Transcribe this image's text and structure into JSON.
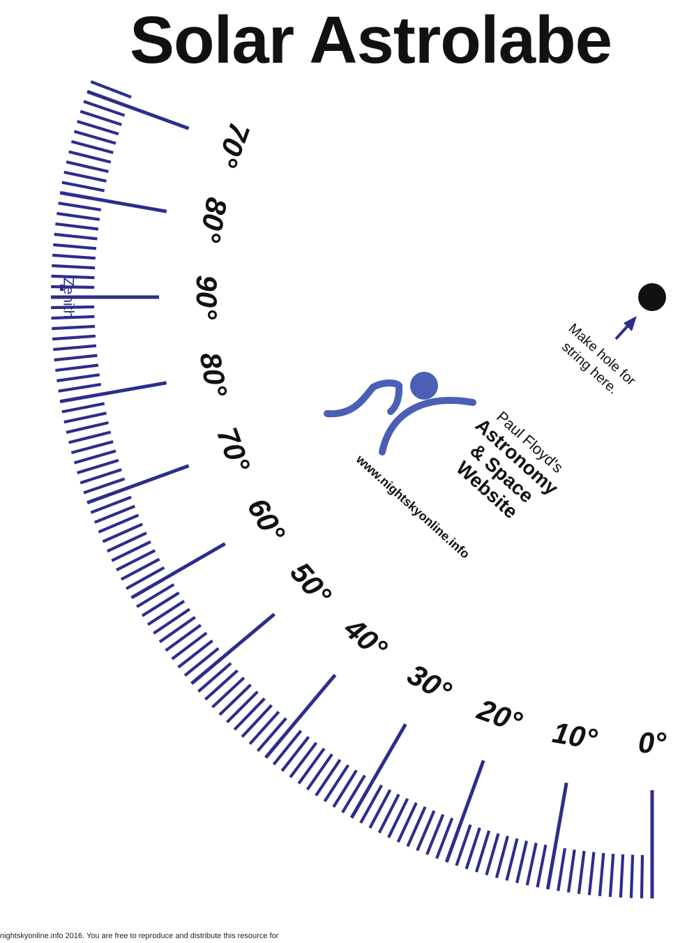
{
  "title": "Solar Astrolabe",
  "scale": {
    "labels": [
      "70°",
      "80°",
      "90°",
      "80°",
      "70°",
      "60°",
      "50°",
      "40°",
      "30°",
      "20°",
      "10°",
      "0°"
    ],
    "zenith_label": "Zenith"
  },
  "hole": {
    "instruction": [
      "Make hole for",
      "string here."
    ]
  },
  "logo": {
    "author": "Paul Floyd's",
    "site_name": [
      "Astronomy",
      "& Space",
      "Website"
    ],
    "url": "www.nightskyonline.info"
  },
  "footer": "nightskyonline.info 2016. You are free to reproduce and distribute this resource for",
  "colors": {
    "scale_blue": "#2B2E8C",
    "logo_blue": "#4A5FB5",
    "text": "#111111"
  }
}
